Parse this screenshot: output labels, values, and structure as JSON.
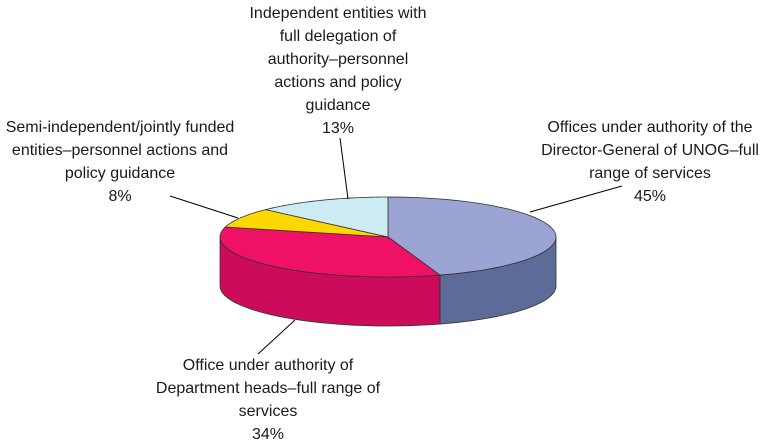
{
  "chart_data": {
    "type": "pie",
    "categories": [
      "Offices under authority of the Director-General of UNOG–full range of services",
      "Office under authority of Department heads–full range of services",
      "Semi-independent/jointly funded entities–personnel actions and policy guidance",
      "Independent entities with full delegation of authority–personnel actions and policy guidance"
    ],
    "values": [
      45,
      34,
      8,
      13
    ],
    "value_labels": [
      "45%",
      "34%",
      "8%",
      "13%"
    ],
    "colors": [
      "#9ba4d3",
      "#ee1166",
      "#ffd700",
      "#cdebf3"
    ],
    "side_colors": [
      "#5c6b97",
      "#cc0b5a",
      "#d4b000",
      "#a9c9d3"
    ]
  }
}
